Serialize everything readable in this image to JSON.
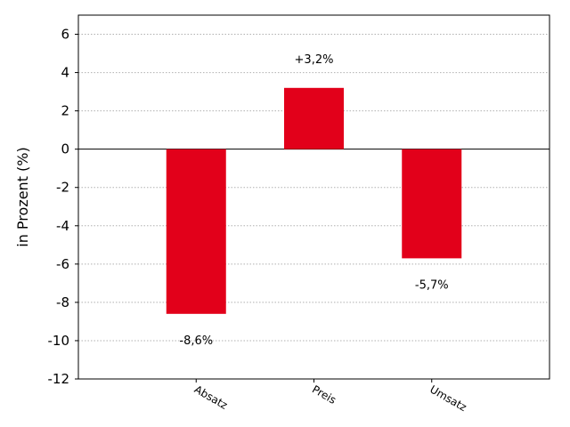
{
  "chart_data": {
    "type": "bar",
    "title": "",
    "xlabel": "",
    "ylabel": "in Prozent (%)",
    "categories": [
      "Absatz",
      "Preis",
      "Umsatz"
    ],
    "values": [
      -8.6,
      3.2,
      -5.7
    ],
    "data_labels": [
      "-8,6%",
      "+3,2%",
      "-5,7%"
    ],
    "ylim": [
      -12,
      7
    ],
    "yticks": [
      6,
      4,
      2,
      0,
      -2,
      -4,
      -6,
      -8,
      -10,
      -12
    ],
    "ytick_labels": [
      "6",
      "4",
      "2",
      "0",
      "-2",
      "-4",
      "-6",
      "-8",
      "-10",
      "-12"
    ],
    "grid": "horizontal dotted",
    "bar_color": "#e2001a"
  }
}
